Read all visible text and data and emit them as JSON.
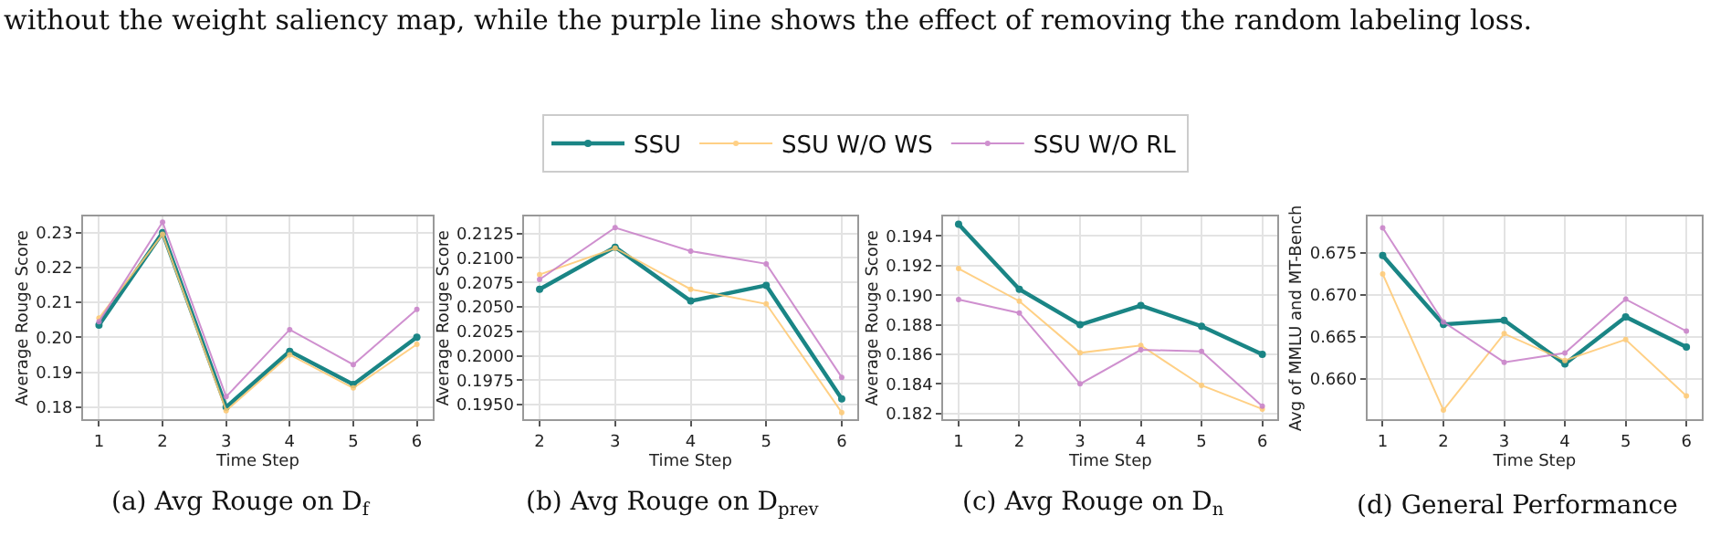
{
  "chart_data": [
    {
      "type": "line",
      "xlabel": "Time Step",
      "ylabel": "Average Rouge Score",
      "x": [
        1,
        2,
        3,
        4,
        5,
        6
      ],
      "xlim": [
        0.75,
        6.25
      ],
      "xticks": [
        1,
        2,
        3,
        4,
        5,
        6
      ],
      "ylim": [
        0.1765,
        0.2345
      ],
      "yticks": [
        0.18,
        0.19,
        {
          "value": 0.2,
          "label": "0.20"
        },
        0.21,
        0.22,
        0.23
      ],
      "grid": true,
      "legend": "top",
      "marker": "circle",
      "line_style": "solid",
      "annotations": [
        "without the weight saliency map, while the purple line shows the effect of removing the random labeling loss.",
        "(a) Avg Rouge on D$_{f}$"
      ],
      "series": [
        {
          "name": "SSU",
          "color": "#1a8585",
          "values": [
            0.2035,
            0.23,
            0.18,
            0.196,
            0.1865,
            0.2
          ]
        },
        {
          "name": "SSU W/O WS",
          "color": "#ffc870",
          "values": [
            0.2055,
            0.2295,
            0.179,
            0.195,
            0.1855,
            0.198
          ]
        },
        {
          "name": "SSU W/O RL",
          "color": "#c77dc7",
          "values": [
            0.2045,
            0.233,
            0.183,
            0.2022,
            0.1922,
            0.208
          ]
        }
      ]
    },
    {
      "type": "line",
      "xlabel": "Time Step",
      "ylabel": "Average Rouge Score",
      "x": [
        2,
        3,
        4,
        5,
        6
      ],
      "xlim": [
        1.8,
        6.2
      ],
      "xticks": [
        2,
        3,
        4,
        5,
        6
      ],
      "ylim": [
        0.1935,
        0.2142
      ],
      "yticks": [
        {
          "value": 0.195,
          "label": "0.1950"
        },
        {
          "value": 0.1975,
          "label": "0.1975"
        },
        {
          "value": 0.2,
          "label": "0.2000"
        },
        {
          "value": 0.2025,
          "label": "0.2025"
        },
        {
          "value": 0.205,
          "label": "0.2050"
        },
        {
          "value": 0.2075,
          "label": "0.2075"
        },
        {
          "value": 0.21,
          "label": "0.2100"
        },
        {
          "value": 0.2125,
          "label": "0.2125"
        }
      ],
      "grid": true,
      "marker": "circle",
      "line_style": "solid",
      "annotations": [
        "(b) Avg Rouge on D$_{prev}$"
      ],
      "series": [
        {
          "color": "#1a8585",
          "values": [
            0.2068,
            0.2111,
            0.2056,
            0.2072,
            0.1956
          ]
        },
        {
          "color": "#ffc870",
          "values": [
            0.2083,
            0.211,
            0.2068,
            0.2053,
            0.1942
          ]
        },
        {
          "color": "#c77dc7",
          "values": [
            0.2078,
            0.2131,
            0.2107,
            0.2094,
            0.1978
          ]
        }
      ]
    },
    {
      "type": "line",
      "xlabel": "Time Step",
      "ylabel": "Average Rouge Score",
      "x": [
        1,
        2,
        3,
        4,
        5,
        6
      ],
      "xlim": [
        0.75,
        6.25
      ],
      "xticks": [
        1,
        2,
        3,
        4,
        5,
        6
      ],
      "ylim": [
        0.1816,
        0.1953
      ],
      "yticks": [
        {
          "value": 0.182,
          "label": "0.182"
        },
        {
          "value": 0.184,
          "label": "0.184"
        },
        {
          "value": 0.186,
          "label": "0.186"
        },
        {
          "value": 0.188,
          "label": "0.188"
        },
        {
          "value": 0.19,
          "label": "0.190"
        },
        {
          "value": 0.192,
          "label": "0.192"
        },
        {
          "value": 0.194,
          "label": "0.194"
        }
      ],
      "grid": true,
      "marker": "circle",
      "line_style": "solid",
      "annotations": [
        "(c) Avg Rouge on D$_{n}$"
      ],
      "series": [
        {
          "color": "#1a8585",
          "values": [
            0.1948,
            0.1904,
            0.188,
            0.1893,
            0.1879,
            0.186
          ]
        },
        {
          "color": "#ffc870",
          "values": [
            0.1918,
            0.1896,
            0.1861,
            0.1866,
            0.1839,
            0.1823
          ]
        },
        {
          "color": "#c77dc7",
          "values": [
            0.1897,
            0.1888,
            0.184,
            0.1863,
            0.1862,
            0.1825
          ]
        }
      ]
    },
    {
      "type": "line",
      "xlabel": "Time Step",
      "ylabel": "Avg of MMLU and MT-Bench",
      "x": [
        1,
        2,
        3,
        4,
        5,
        6
      ],
      "xlim": [
        0.75,
        6.25
      ],
      "xticks": [
        1,
        2,
        3,
        4,
        5,
        6
      ],
      "ylim": [
        0.6552,
        0.6793
      ],
      "yticks": [
        {
          "value": 0.66,
          "label": "0.660"
        },
        {
          "value": 0.665,
          "label": "0.665"
        },
        {
          "value": 0.67,
          "label": "0.670"
        },
        {
          "value": 0.675,
          "label": "0.675"
        }
      ],
      "grid": true,
      "marker": "circle",
      "line_style": "solid",
      "annotations": [
        "(d) General Performance"
      ],
      "series": [
        {
          "color": "#1a8585",
          "values": [
            0.6747,
            0.6665,
            0.667,
            0.6618,
            0.6674,
            0.6638
          ]
        },
        {
          "color": "#ffc870",
          "values": [
            0.6725,
            0.6563,
            0.6654,
            0.6622,
            0.6647,
            0.658
          ]
        },
        {
          "color": "#c77dc7",
          "values": [
            0.678,
            0.6668,
            0.662,
            0.6631,
            0.6695,
            0.6657
          ]
        }
      ]
    }
  ]
}
